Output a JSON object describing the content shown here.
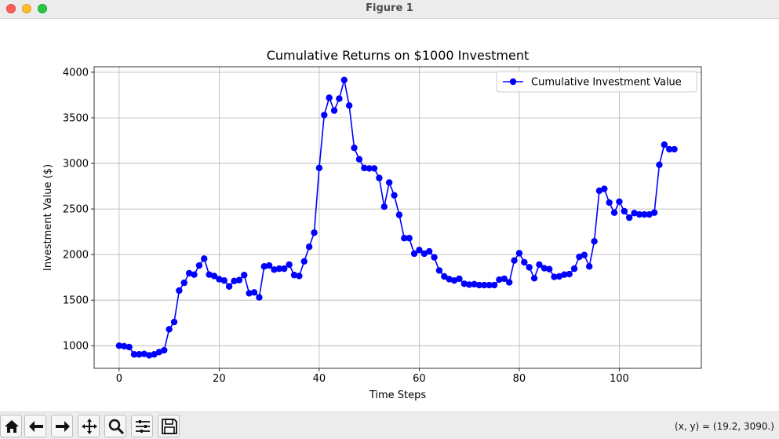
{
  "window": {
    "title": "Figure 1"
  },
  "toolbar": {
    "buttons": [
      "home-icon",
      "back-arrow-icon",
      "forward-arrow-icon",
      "pan-icon",
      "zoom-icon",
      "configure-subplots-icon",
      "save-icon"
    ],
    "coords": "(x, y) = (19.2, 3090.)"
  },
  "colors": {
    "line": "#0000ff",
    "grid": "#b0b0b0"
  },
  "chart_data": {
    "type": "line",
    "title": "Cumulative Returns on $1000 Investment",
    "xlabel": "Time Steps",
    "ylabel": "Investment Value ($)",
    "xlim": [
      -5,
      116.4
    ],
    "ylim": [
      752,
      4060
    ],
    "xticks": [
      "0",
      "20",
      "40",
      "60",
      "80",
      "100"
    ],
    "yticks": [
      "1000",
      "1500",
      "2000",
      "2500",
      "3000",
      "3500",
      "4000"
    ],
    "grid": true,
    "legend": "top-right",
    "series": [
      {
        "name": "Cumulative Investment Value",
        "color": "#0000ff",
        "marker": "o",
        "values": [
          1000,
          995,
          985,
          905,
          905,
          910,
          895,
          905,
          930,
          950,
          1180,
          1260,
          1605,
          1690,
          1795,
          1780,
          1880,
          1955,
          1780,
          1765,
          1730,
          1715,
          1650,
          1710,
          1720,
          1775,
          1575,
          1585,
          1530,
          1870,
          1880,
          1835,
          1845,
          1845,
          1890,
          1775,
          1765,
          1925,
          2085,
          2240,
          2950,
          3530,
          3720,
          3580,
          3710,
          3915,
          3635,
          3170,
          3045,
          2950,
          2945,
          2945,
          2840,
          2525,
          2790,
          2650,
          2435,
          2180,
          2180,
          2010,
          2050,
          2010,
          2035,
          1970,
          1825,
          1760,
          1730,
          1715,
          1735,
          1680,
          1670,
          1675,
          1665,
          1665,
          1665,
          1665,
          1725,
          1735,
          1695,
          1935,
          2015,
          1915,
          1860,
          1740,
          1890,
          1850,
          1840,
          1755,
          1760,
          1780,
          1785,
          1845,
          1975,
          1995,
          1870,
          2145,
          2700,
          2720,
          2570,
          2460,
          2580,
          2475,
          2405,
          2455,
          2440,
          2440,
          2440,
          2460,
          2985,
          3205,
          3155,
          3155
        ]
      }
    ]
  }
}
